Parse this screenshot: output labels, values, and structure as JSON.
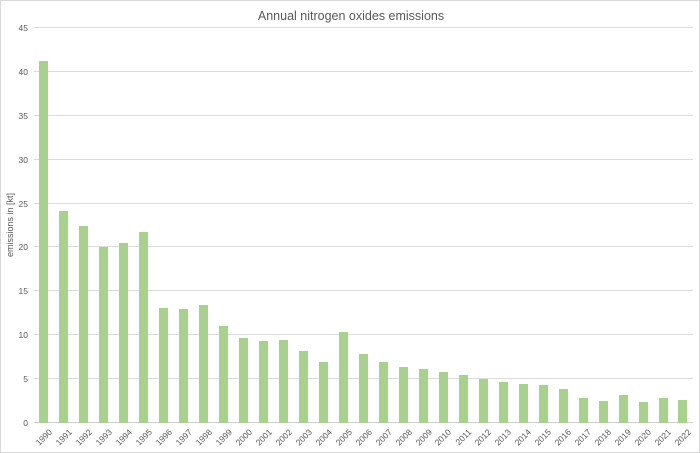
{
  "chart_data": {
    "type": "bar",
    "title": "Annual nitrogen oxides emissions",
    "xlabel": "",
    "ylabel": "emissions in [kt]",
    "ylim": [
      0,
      45
    ],
    "ytick_step": 5,
    "grid": true,
    "legend": "none",
    "bar_color": "#a9d18e",
    "grid_color": "#dcdcdc",
    "text_color": "#595959",
    "categories": [
      "1990",
      "1991",
      "1992",
      "1993",
      "1994",
      "1995",
      "1996",
      "1997",
      "1998",
      "1999",
      "2000",
      "2001",
      "2002",
      "2003",
      "2004",
      "2005",
      "2006",
      "2007",
      "2008",
      "2009",
      "2010",
      "2011",
      "2012",
      "2013",
      "2014",
      "2015",
      "2016",
      "2017",
      "2018",
      "2019",
      "2020",
      "2021",
      "2022"
    ],
    "values": [
      41.2,
      24.2,
      22.4,
      20.1,
      20.5,
      21.8,
      13.1,
      13.0,
      13.4,
      11.0,
      9.7,
      9.4,
      9.5,
      8.2,
      7.0,
      10.4,
      7.9,
      6.9,
      6.4,
      6.2,
      5.8,
      5.5,
      5.0,
      4.7,
      4.5,
      4.3,
      3.9,
      2.9,
      2.5,
      3.2,
      2.4,
      2.8,
      2.6
    ]
  }
}
